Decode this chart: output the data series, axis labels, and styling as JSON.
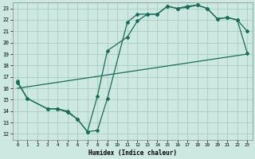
{
  "xlabel": "Humidex (Indice chaleur)",
  "xlim": [
    -0.5,
    23.5
  ],
  "ylim": [
    11.5,
    23.5
  ],
  "yticks": [
    12,
    13,
    14,
    15,
    16,
    17,
    18,
    19,
    20,
    21,
    22,
    23
  ],
  "xticks": [
    0,
    1,
    2,
    3,
    4,
    5,
    6,
    7,
    8,
    9,
    10,
    11,
    12,
    13,
    14,
    15,
    16,
    17,
    18,
    19,
    20,
    21,
    22,
    23
  ],
  "bg_color": "#cce8e0",
  "grid_color": "#aaccbf",
  "line_color": "#1a6b5a",
  "line1_x": [
    0,
    1,
    3,
    4,
    5,
    6,
    7,
    8,
    9,
    11,
    12,
    13,
    14,
    15,
    16,
    17,
    18,
    19,
    20,
    21,
    22,
    23
  ],
  "line1_y": [
    16.6,
    15.1,
    14.2,
    14.2,
    13.9,
    13.3,
    12.2,
    12.3,
    15.1,
    21.8,
    22.5,
    22.5,
    22.5,
    23.2,
    23.0,
    23.1,
    23.3,
    23.0,
    22.1,
    22.2,
    22.0,
    19.1
  ],
  "line2_x": [
    0,
    23
  ],
  "line2_y": [
    16.0,
    19.0
  ],
  "line3_x": [
    0,
    1,
    3,
    4,
    5,
    6,
    7,
    8,
    9,
    11,
    12,
    13,
    14,
    15,
    16,
    17,
    18,
    19,
    20,
    21,
    22,
    23
  ],
  "line3_y": [
    16.5,
    15.1,
    14.2,
    14.2,
    14.0,
    13.3,
    12.2,
    15.3,
    19.3,
    20.5,
    21.9,
    22.5,
    22.5,
    23.2,
    23.0,
    23.2,
    23.3,
    23.0,
    22.1,
    22.2,
    22.0,
    21.0
  ],
  "marker": "D",
  "markersize": 2.0,
  "linewidth": 0.9
}
